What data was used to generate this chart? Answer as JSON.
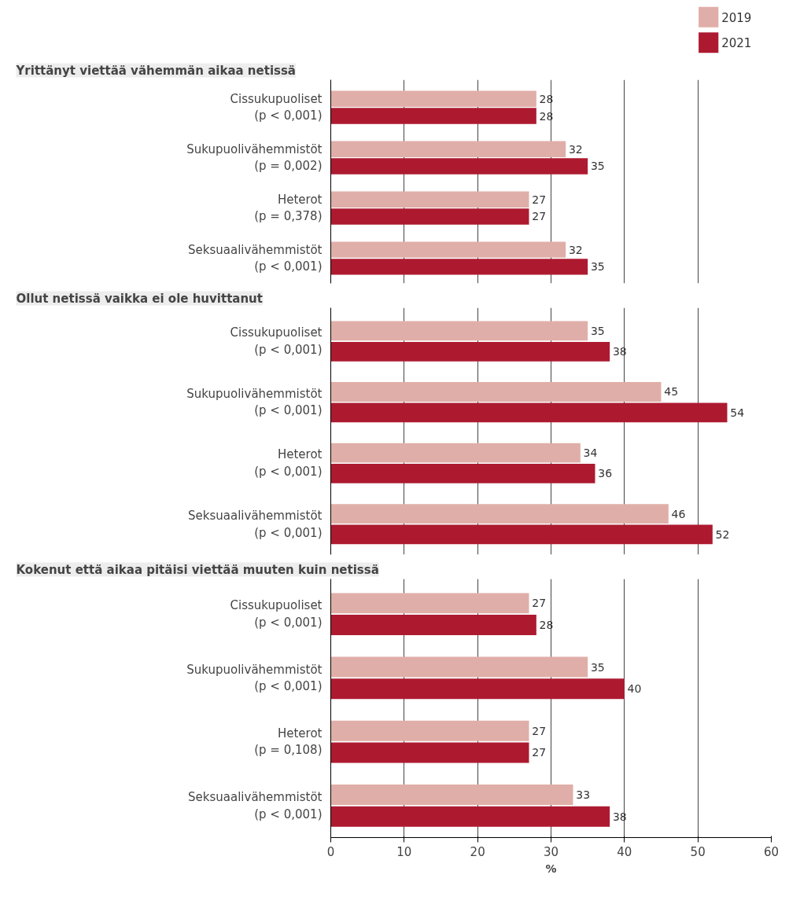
{
  "chart_data": [
    {
      "type": "bar",
      "orientation": "horizontal",
      "title": "Yrittänyt viettää vähemmän aikaa netissä",
      "categories": [
        "Cissukupuoliset\n(p < 0,001)",
        "Sukupuolivähemmistöt\n(p = 0,002)",
        "Heterot\n(p = 0,378)",
        "Seksuaalivähemmistöt\n(p < 0,001)"
      ],
      "series": [
        {
          "name": "2019",
          "color": "#e0aea8",
          "values": [
            28,
            32,
            27,
            32
          ]
        },
        {
          "name": "2021",
          "color": "#ad1a30",
          "values": [
            28,
            35,
            27,
            35
          ]
        }
      ],
      "xlim": [
        0,
        60
      ],
      "xticks": [
        0,
        10,
        20,
        30,
        40,
        50,
        60
      ],
      "grid": "x",
      "data_labels": true,
      "tick_labels": "y",
      "legend": "top right"
    },
    {
      "type": "bar",
      "orientation": "horizontal",
      "title": "Ollut netissä vaikka ei ole huvittanut",
      "categories": [
        "Cissukupuoliset\n(p < 0,001)",
        "Sukupuolivähemmistöt\n(p < 0,001)",
        "Heterot\n(p < 0,001)",
        "Seksuaalivähemmistöt\n(p < 0,001)"
      ],
      "series": [
        {
          "color": "#e0aea8",
          "values": [
            35,
            45,
            34,
            46
          ]
        },
        {
          "color": "#ad1a30",
          "values": [
            38,
            54,
            36,
            52
          ]
        }
      ],
      "xlim": [
        0,
        60
      ],
      "xticks": [
        0,
        10,
        20,
        30,
        40,
        50,
        60
      ],
      "grid": "x",
      "data_labels": true,
      "tick_labels": "y"
    },
    {
      "type": "bar",
      "orientation": "horizontal",
      "title": "Kokenut että aikaa pitäisi viettää muuten kuin netissä",
      "categories": [
        "Cissukupuoliset\n(p < 0,001)",
        "Sukupuolivähemmistöt\n(p < 0,001)",
        "Heterot\n(p = 0,108)",
        "Seksuaalivähemmistöt\n(p < 0,001)"
      ],
      "series": [
        {
          "color": "#e0aea8",
          "values": [
            27,
            35,
            27,
            33
          ]
        },
        {
          "color": "#ad1a30",
          "values": [
            28,
            40,
            27,
            38
          ]
        }
      ],
      "xlim": [
        0,
        60
      ],
      "xticks": [
        0,
        10,
        20,
        30,
        40,
        50,
        60
      ],
      "xlabel": "%",
      "grid": "x",
      "data_labels": true
    }
  ]
}
